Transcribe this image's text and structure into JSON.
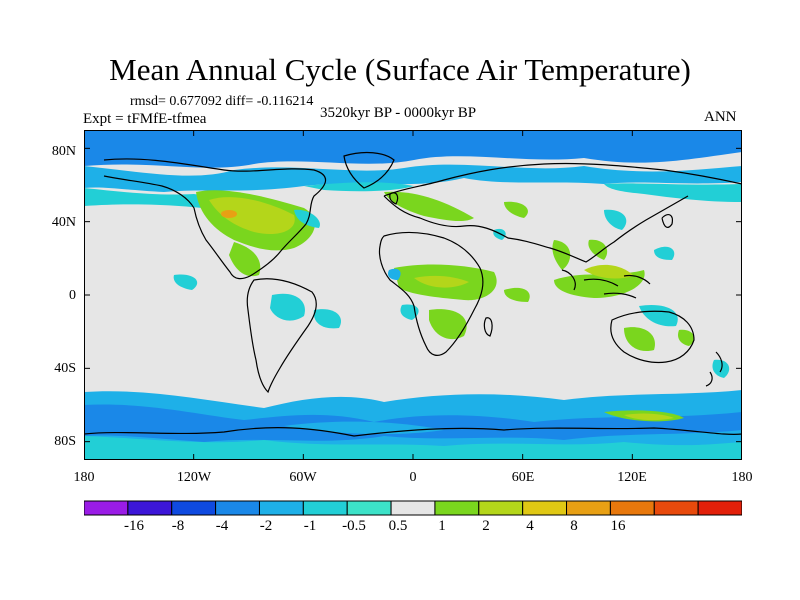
{
  "header": {
    "title": "Mean Annual Cycle (Surface Air Temperature)",
    "stats": "rmsd= 0.677092 diff= -0.116214",
    "experiment": "Expt = tFMfE-tfmea",
    "period": "3520kyr BP - 0000kyr BP",
    "season": "ANN"
  },
  "map": {
    "lat_labels": [
      "80N",
      "40N",
      "0",
      "40S",
      "80S"
    ],
    "lon_labels": [
      "180",
      "120W",
      "60W",
      "0",
      "60E",
      "120E",
      "180"
    ],
    "lat_values": [
      80,
      40,
      0,
      -40,
      -80
    ],
    "lon_values": [
      -180,
      -120,
      -60,
      0,
      60,
      120,
      180
    ],
    "lat_range": [
      -90,
      90
    ],
    "lon_range": [
      -180,
      180
    ]
  },
  "colorbar": {
    "labels": [
      "-16",
      "-8",
      "-4",
      "-2",
      "-1",
      "-0.5",
      "0.5",
      "1",
      "2",
      "4",
      "8",
      "16"
    ],
    "colors": [
      "#9a1ce6",
      "#3c16d8",
      "#0f4ae0",
      "#1a88e8",
      "#1eb0e8",
      "#22cfd6",
      "#3ce2c8",
      "#e6e6e6",
      "#7ad61e",
      "#b4d61a",
      "#e0c814",
      "#e8a014",
      "#e8780c",
      "#e84a0c",
      "#e2200a"
    ]
  }
}
